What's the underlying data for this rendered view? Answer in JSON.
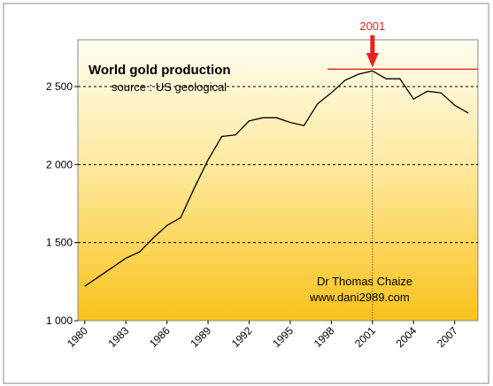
{
  "chart_data": {
    "type": "line",
    "title": "World gold production",
    "subtitle": "source : US geological",
    "annotations": [
      "Dr Thomas Chaize",
      "www.dani2989.com"
    ],
    "peak_label": "2001",
    "x": [
      1980,
      1981,
      1982,
      1983,
      1984,
      1985,
      1986,
      1987,
      1988,
      1989,
      1990,
      1991,
      1992,
      1993,
      1994,
      1995,
      1996,
      1997,
      1998,
      1999,
      2000,
      2001,
      2002,
      2003,
      2004,
      2005,
      2006,
      2007,
      2008
    ],
    "series": [
      {
        "name": "World gold production",
        "color": "#000000",
        "values": [
          1220,
          1280,
          1340,
          1400,
          1440,
          1530,
          1610,
          1660,
          1850,
          2030,
          2180,
          2190,
          2280,
          2300,
          2300,
          2270,
          2250,
          2390,
          2460,
          2540,
          2580,
          2600,
          2550,
          2550,
          2420,
          2470,
          2460,
          2380,
          2330
        ]
      }
    ],
    "xlim": [
      1979.5,
      2008.7
    ],
    "xticks": [
      1980,
      1983,
      1986,
      1989,
      1992,
      1995,
      1998,
      2001,
      2004,
      2007
    ],
    "ylim": [
      1000,
      2800
    ],
    "yticks": [
      {
        "value": 1000,
        "label": "1 000"
      },
      {
        "value": 1500,
        "label": "1 500"
      },
      {
        "value": 2000,
        "label": "2 000"
      },
      {
        "value": 2500,
        "label": "2 500"
      }
    ],
    "grid": true,
    "annotation_color": "#e8211f"
  }
}
